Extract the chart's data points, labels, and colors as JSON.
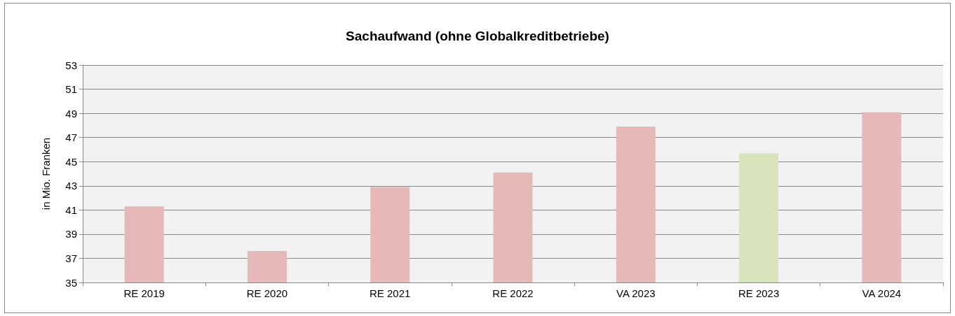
{
  "chart_data": {
    "type": "bar",
    "title": "Sachaufwand (ohne Globalkreditbetriebe)",
    "ylabel": "in Mio. Franken",
    "categories": [
      "RE 2019",
      "RE 2020",
      "RE 2021",
      "RE 2022",
      "VA 2023",
      "RE 2023",
      "VA 2024"
    ],
    "values": [
      41.3,
      37.6,
      42.9,
      44.1,
      47.9,
      45.7,
      49.1
    ],
    "colors": [
      "#e6b8b7",
      "#e6b8b7",
      "#e6b8b7",
      "#e6b8b7",
      "#e6b8b7",
      "#d8e4bc",
      "#e6b8b7"
    ],
    "ylim": [
      35,
      53
    ],
    "yticks": [
      35,
      37,
      39,
      41,
      43,
      45,
      47,
      49,
      51,
      53
    ],
    "grid": "y"
  }
}
